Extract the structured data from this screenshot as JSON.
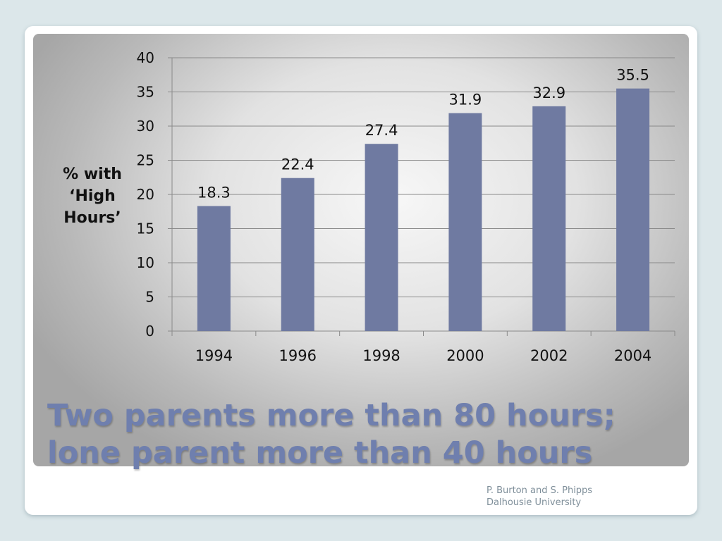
{
  "slide": {
    "title_line1": "Two parents more than 80 hours;",
    "title_line2": "lone parent more than 40 hours",
    "credit_line1": "P. Burton and S. Phipps",
    "credit_line2": "Dalhousie University"
  },
  "chart_data": {
    "type": "bar",
    "categories": [
      "1994",
      "1996",
      "1998",
      "2000",
      "2002",
      "2004"
    ],
    "values": [
      18.3,
      22.4,
      27.4,
      31.9,
      32.9,
      35.5
    ],
    "data_labels": [
      "18.3",
      "22.4",
      "27.4",
      "31.9",
      "32.9",
      "35.5"
    ],
    "title": "",
    "xlabel": "",
    "ylabel_lines": [
      "% with",
      "‘High",
      "Hours’"
    ],
    "ylim": [
      0,
      40
    ],
    "yticks": [
      0,
      5,
      10,
      15,
      20,
      25,
      30,
      35,
      40
    ],
    "grid": true,
    "legend": "none",
    "bar_color": "#6f7aa1",
    "title_color": "#6f7fae"
  }
}
